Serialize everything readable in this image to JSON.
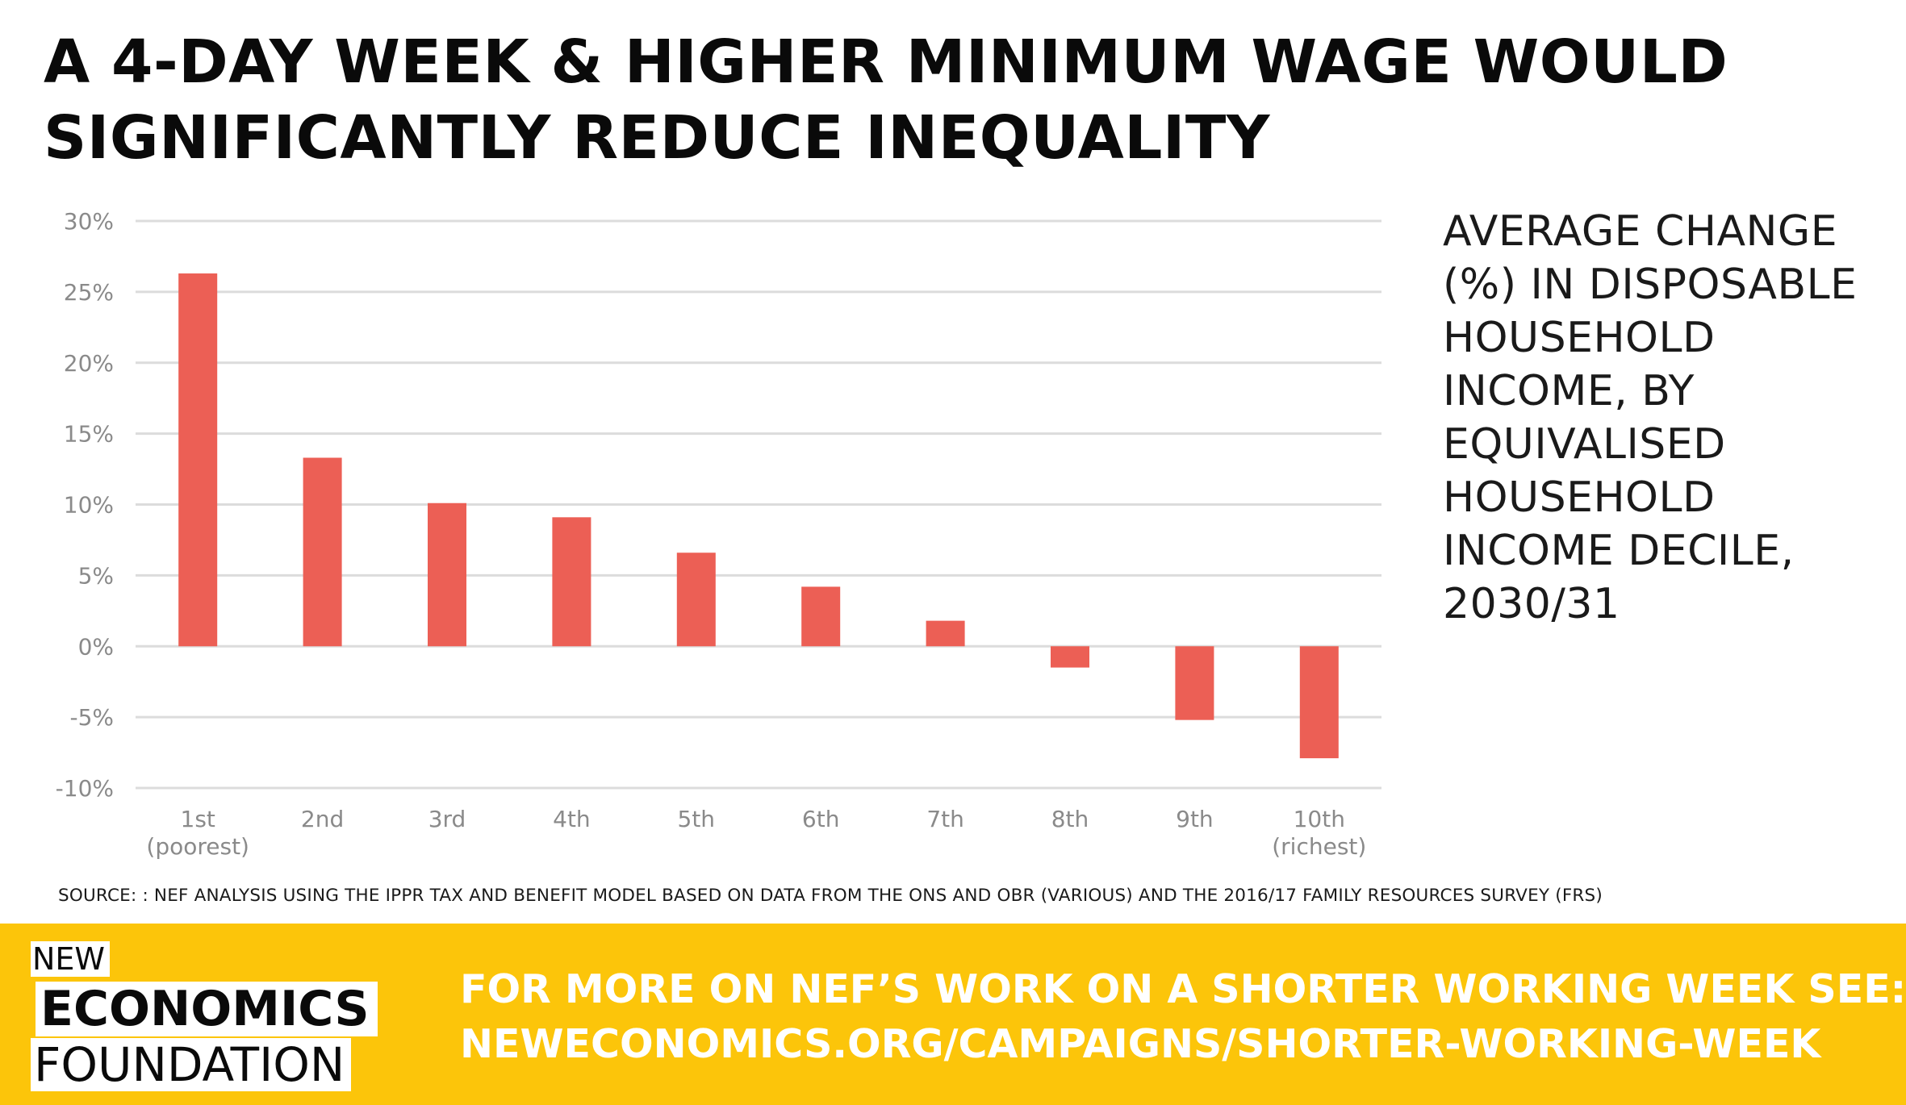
{
  "headline": {
    "line1": "A 4-DAY WEEK & HIGHER MINIMUM WAGE WOULD",
    "line2": "SIGNIFICANTLY REDUCE INEQUALITY"
  },
  "chart_data": {
    "type": "bar",
    "title": "AVERAGE CHANGE (%) IN DISPOSABLE HOUSEHOLD INCOME, BY EQUIVALISED HOUSEHOLD INCOME DECILE, 2030/31",
    "categories": [
      [
        "1st",
        "(poorest)"
      ],
      [
        "2nd"
      ],
      [
        "3rd"
      ],
      [
        "4th"
      ],
      [
        "5th"
      ],
      [
        "6th"
      ],
      [
        "7th"
      ],
      [
        "8th"
      ],
      [
        "9th"
      ],
      [
        "10th",
        "(richest)"
      ]
    ],
    "values": [
      26.3,
      13.3,
      10.1,
      9.1,
      6.6,
      4.2,
      1.8,
      -1.5,
      -5.2,
      -7.9
    ],
    "ylim": [
      -10,
      30
    ],
    "yticks": [
      -10,
      -5,
      0,
      5,
      10,
      15,
      20,
      25,
      30
    ],
    "ytick_labels": [
      "-10%",
      "-5%",
      "0%",
      "5%",
      "10%",
      "15%",
      "20%",
      "25%",
      "30%"
    ],
    "xlabel": "",
    "ylabel": "",
    "grid": true,
    "bar_color": "#ec5f55",
    "grid_color": "#dcdcdc"
  },
  "side_title_lines": [
    "AVERAGE CHANGE",
    "(%) IN DISPOSABLE",
    "HOUSEHOLD",
    "INCOME, BY",
    "EQUIVALISED",
    "HOUSEHOLD",
    "INCOME DECILE,",
    "2030/31"
  ],
  "source": "SOURCE: : NEF ANALYSIS USING THE IPPR TAX AND BENEFIT MODEL BASED ON DATA FROM THE ONS AND OBR (VARIOUS) AND THE 2016/17 FAMILY RESOURCES SURVEY (FRS)",
  "footer": {
    "logo_new": "NEW",
    "logo_economics": "ECONOMICS",
    "logo_foundation": "FOUNDATION",
    "cta_line1": "FOR MORE ON NEF’S WORK ON A SHORTER WORKING WEEK SEE:",
    "cta_line2": "NEWECONOMICS.ORG/CAMPAIGNS/SHORTER-WORKING-WEEK",
    "background_color": "#fcc50a",
    "cta_color": "#ffffff"
  }
}
